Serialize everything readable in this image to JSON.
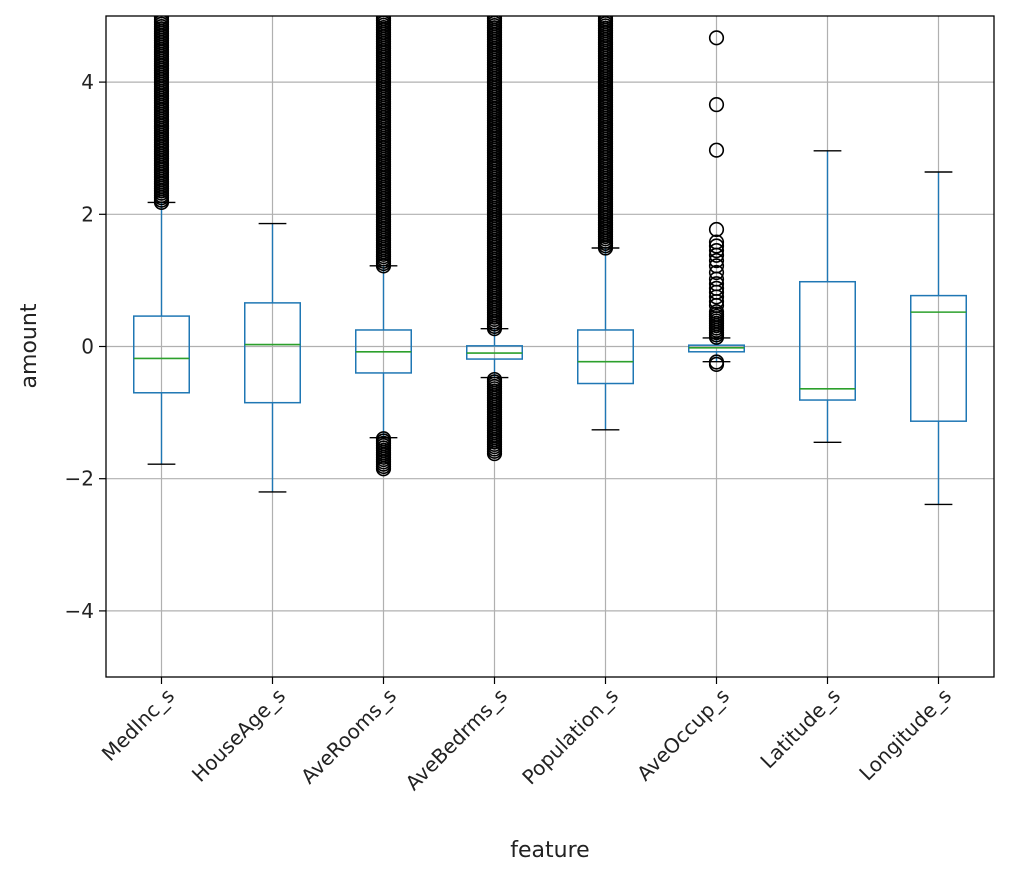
{
  "chart_data": {
    "type": "box",
    "title": "",
    "xlabel": "feature",
    "ylabel": "amount",
    "ylim": [
      -5,
      5
    ],
    "yticks": [
      -4,
      -2,
      0,
      2,
      4
    ],
    "ytick_labels": [
      "−4",
      "−2",
      "0",
      "2",
      "4"
    ],
    "grid": true,
    "colors": {
      "box": "#1f77b4",
      "median": "#2ca02c",
      "whisker": "#1f77b4",
      "cap": "#000000",
      "flier": "#000000",
      "grid": "#b0b0b0",
      "frame": "#000000"
    },
    "series": [
      {
        "name": "MedInc_s",
        "whislo": -1.78,
        "q1": -0.7,
        "med": -0.18,
        "q3": 0.46,
        "whishi": 2.18,
        "flier_bands": [
          [
            2.18,
            5.0
          ]
        ],
        "fliers": []
      },
      {
        "name": "HouseAge_s",
        "whislo": -2.2,
        "q1": -0.85,
        "med": 0.03,
        "q3": 0.66,
        "whishi": 1.86,
        "flier_bands": [],
        "fliers": []
      },
      {
        "name": "AveRooms_s",
        "whislo": -1.38,
        "q1": -0.4,
        "med": -0.08,
        "q3": 0.25,
        "whishi": 1.22,
        "flier_bands": [
          [
            1.22,
            5.0
          ],
          [
            -1.85,
            -1.38
          ]
        ],
        "fliers": []
      },
      {
        "name": "AveBedrms_s",
        "whislo": -0.47,
        "q1": -0.19,
        "med": -0.1,
        "q3": 0.01,
        "whishi": 0.27,
        "flier_bands": [
          [
            0.27,
            5.0
          ],
          [
            -1.62,
            -0.47
          ]
        ],
        "fliers": []
      },
      {
        "name": "Population_s",
        "whislo": -1.26,
        "q1": -0.56,
        "med": -0.23,
        "q3": 0.25,
        "whishi": 1.49,
        "flier_bands": [
          [
            1.49,
            5.0
          ]
        ],
        "fliers": []
      },
      {
        "name": "AveOccup_s",
        "whislo": -0.23,
        "q1": -0.08,
        "med": -0.02,
        "q3": 0.02,
        "whishi": 0.13,
        "flier_bands": [
          [
            0.14,
            0.55
          ],
          [
            -0.27,
            -0.23
          ]
        ],
        "fliers": [
          4.67,
          3.66,
          2.97,
          1.77,
          1.58,
          1.52,
          1.45,
          1.38,
          1.3,
          1.22,
          1.12,
          1.02,
          0.95,
          0.88,
          0.82,
          0.75,
          0.68,
          0.62
        ]
      },
      {
        "name": "Latitude_s",
        "whislo": -1.45,
        "q1": -0.81,
        "med": -0.64,
        "q3": 0.98,
        "whishi": 2.96,
        "flier_bands": [],
        "fliers": []
      },
      {
        "name": "Longitude_s",
        "whislo": -2.39,
        "q1": -1.13,
        "med": 0.52,
        "q3": 0.77,
        "whishi": 2.64,
        "flier_bands": [],
        "fliers": []
      }
    ]
  }
}
